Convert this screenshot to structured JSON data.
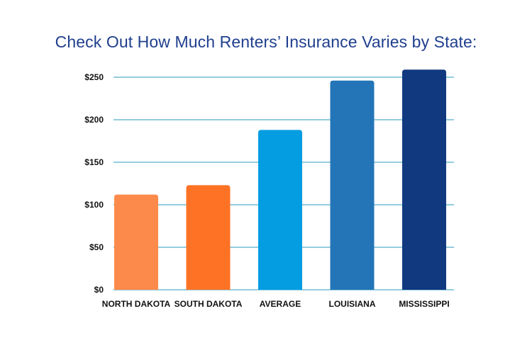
{
  "chart_data": {
    "type": "bar",
    "title": "Check Out How Much Renters’ Insurance Varies by State:",
    "xlabel": "",
    "ylabel": "",
    "categories": [
      "NORTH DAKOTA",
      "SOUTH DAKOTA",
      "AVERAGE",
      "LOUISIANA",
      "MISSISSIPPI"
    ],
    "values": [
      112,
      123,
      188,
      246,
      259
    ],
    "bar_colors": [
      "#fc8a4b",
      "#fe7225",
      "#049de1",
      "#2375b7",
      "#10397f"
    ],
    "ylim": [
      0,
      250
    ],
    "yticks": [
      0,
      50,
      100,
      150,
      200,
      250
    ],
    "ytick_labels": [
      "$0",
      "$50",
      "$100",
      "$150",
      "$200",
      "$250"
    ],
    "grid": true,
    "grid_color": "#2a9bbe",
    "title_color": "#1f3f8e"
  }
}
